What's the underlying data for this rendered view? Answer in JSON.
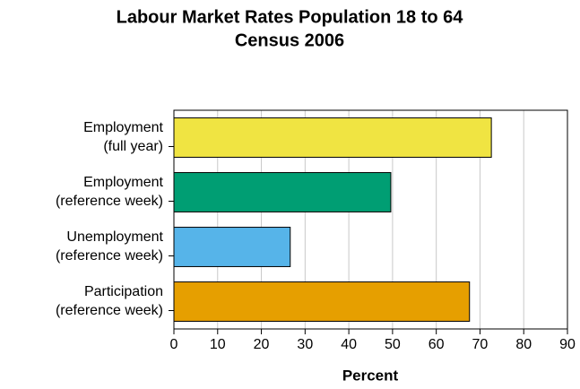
{
  "chart_data": {
    "type": "barh",
    "title": "Labour Market Rates Population 18 to 64",
    "subtitle": "Census 2006",
    "categories": [
      [
        "Employment",
        "(full year)"
      ],
      [
        "Employment",
        "(reference week)"
      ],
      [
        "Unemployment",
        "(reference week)"
      ],
      [
        "Participation",
        "(reference week)"
      ]
    ],
    "values": [
      72.6,
      49.6,
      26.6,
      67.6
    ],
    "colors": [
      "#f0e442",
      "#009e73",
      "#56b4e9",
      "#e69f00"
    ],
    "xlim": [
      0,
      90
    ],
    "xticks": [
      0,
      10,
      20,
      30,
      40,
      50,
      60,
      70,
      80,
      90
    ],
    "xlabel": "Percent",
    "grid": true
  }
}
